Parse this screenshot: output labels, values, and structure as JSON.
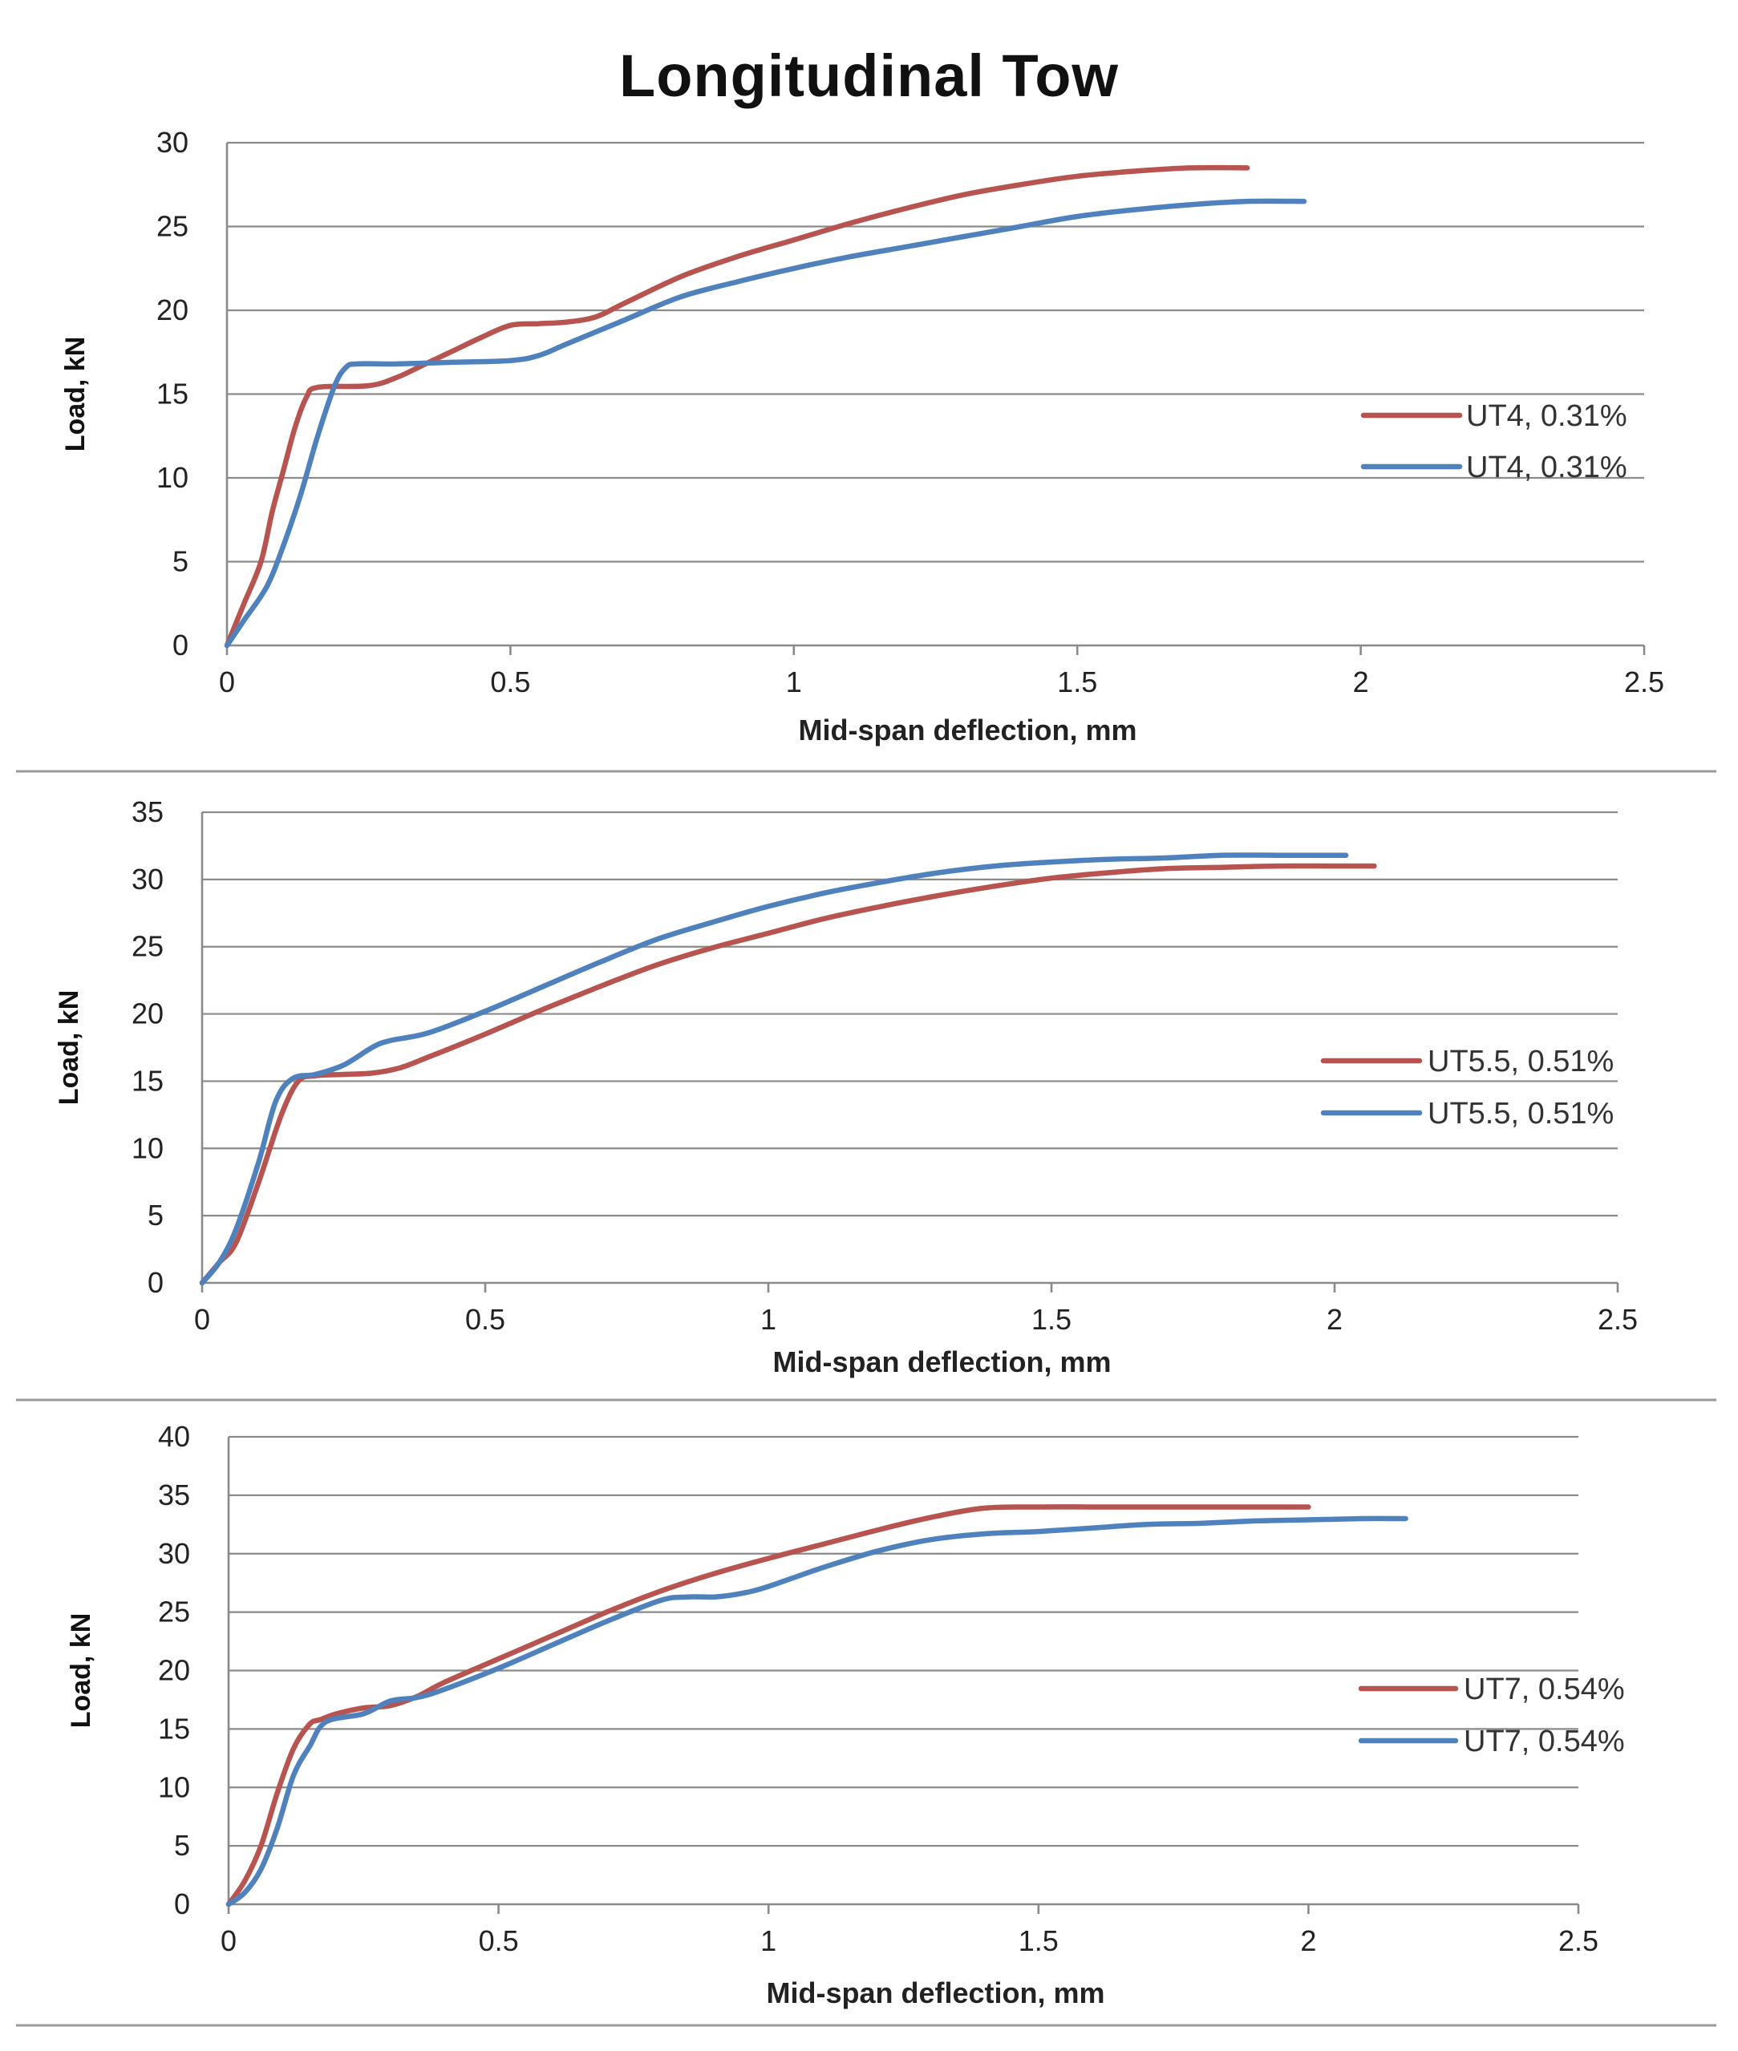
{
  "title": "Longitudinal Tow",
  "colors": {
    "series1": "#b85450",
    "series2": "#4f81bd",
    "grid": "#8a8a8a"
  },
  "chart_data": [
    {
      "type": "line",
      "xlabel": "Mid-span deflection, mm",
      "ylabel": "Load, kN",
      "xlim": [
        0,
        2.5
      ],
      "ylim": [
        0,
        30
      ],
      "xticks": [
        "0",
        "0.5",
        "1",
        "1.5",
        "2",
        "2.5"
      ],
      "yticks": [
        "0",
        "5",
        "10",
        "15",
        "20",
        "25",
        "30"
      ],
      "legend_position": "right",
      "series": [
        {
          "name": "UT4, 0.31%",
          "color": "#b85450",
          "x": [
            0,
            0.03,
            0.06,
            0.08,
            0.1,
            0.12,
            0.14,
            0.16,
            0.25,
            0.3,
            0.35,
            0.4,
            0.45,
            0.5,
            0.55,
            0.6,
            0.65,
            0.7,
            0.8,
            0.9,
            1.0,
            1.1,
            1.2,
            1.3,
            1.4,
            1.5,
            1.6,
            1.7,
            1.8
          ],
          "y": [
            0,
            2.5,
            5,
            8,
            10.5,
            13,
            14.8,
            15.4,
            15.5,
            16.0,
            16.8,
            17.6,
            18.4,
            19.1,
            19.2,
            19.3,
            19.6,
            20.4,
            22.0,
            23.2,
            24.2,
            25.2,
            26.1,
            26.9,
            27.5,
            28.0,
            28.3,
            28.5,
            28.5
          ]
        },
        {
          "name": "UT4, 0.31%",
          "color": "#4f81bd",
          "x": [
            0,
            0.03,
            0.07,
            0.1,
            0.13,
            0.16,
            0.19,
            0.21,
            0.23,
            0.3,
            0.4,
            0.5,
            0.55,
            0.6,
            0.7,
            0.8,
            0.9,
            1.0,
            1.1,
            1.2,
            1.3,
            1.4,
            1.5,
            1.6,
            1.7,
            1.8,
            1.9
          ],
          "y": [
            0,
            1.5,
            3.5,
            6,
            9,
            12.5,
            15.5,
            16.6,
            16.8,
            16.8,
            16.9,
            17.0,
            17.3,
            18.0,
            19.4,
            20.8,
            21.7,
            22.5,
            23.2,
            23.8,
            24.4,
            25.0,
            25.6,
            26.0,
            26.3,
            26.5,
            26.5
          ]
        }
      ]
    },
    {
      "type": "line",
      "xlabel": "Mid-span deflection, mm",
      "ylabel": "Load, kN",
      "xlim": [
        0,
        2.5
      ],
      "ylim": [
        0,
        35
      ],
      "xticks": [
        "0",
        "0.5",
        "1",
        "1.5",
        "2",
        "2.5"
      ],
      "yticks": [
        "0",
        "5",
        "10",
        "15",
        "20",
        "25",
        "30",
        "35"
      ],
      "legend_position": "right",
      "series": [
        {
          "name": "UT5.5, 0.51%",
          "color": "#b85450",
          "x": [
            0,
            0.03,
            0.06,
            0.1,
            0.14,
            0.17,
            0.2,
            0.25,
            0.3,
            0.35,
            0.4,
            0.5,
            0.6,
            0.7,
            0.8,
            0.9,
            1.0,
            1.1,
            1.2,
            1.3,
            1.4,
            1.5,
            1.6,
            1.7,
            1.8,
            1.9,
            2.0,
            2.07
          ],
          "y": [
            0,
            1.5,
            3,
            7.5,
            12.5,
            15.0,
            15.4,
            15.5,
            15.6,
            16.0,
            16.8,
            18.5,
            20.3,
            22.0,
            23.6,
            24.9,
            26.0,
            27.1,
            28.0,
            28.8,
            29.5,
            30.1,
            30.5,
            30.8,
            30.9,
            31.0,
            31.0,
            31.0
          ]
        },
        {
          "name": "UT5.5, 0.51%",
          "color": "#4f81bd",
          "x": [
            0,
            0.03,
            0.06,
            0.1,
            0.13,
            0.16,
            0.2,
            0.25,
            0.3,
            0.33,
            0.4,
            0.5,
            0.6,
            0.7,
            0.8,
            0.9,
            1.0,
            1.1,
            1.2,
            1.3,
            1.4,
            1.5,
            1.6,
            1.7,
            1.8,
            1.9,
            2.02
          ],
          "y": [
            0,
            1.5,
            4,
            9,
            13.5,
            15.2,
            15.5,
            16.2,
            17.5,
            18.0,
            18.6,
            20.2,
            22.0,
            23.8,
            25.5,
            26.8,
            28.0,
            29.0,
            29.8,
            30.5,
            31.0,
            31.3,
            31.5,
            31.6,
            31.8,
            31.8,
            31.8
          ]
        }
      ]
    },
    {
      "type": "line",
      "xlabel": "Mid-span deflection, mm",
      "ylabel": "Load, kN",
      "xlim": [
        0,
        2.5
      ],
      "ylim": [
        0,
        40
      ],
      "xticks": [
        "0",
        "0.5",
        "1",
        "1.5",
        "2",
        "2.5"
      ],
      "yticks": [
        "0",
        "5",
        "10",
        "15",
        "20",
        "25",
        "30",
        "35",
        "40"
      ],
      "legend_position": "right",
      "series": [
        {
          "name": "UT7, 0.54%",
          "color": "#b85450",
          "x": [
            0,
            0.03,
            0.06,
            0.09,
            0.12,
            0.15,
            0.17,
            0.2,
            0.25,
            0.3,
            0.35,
            0.4,
            0.5,
            0.6,
            0.7,
            0.8,
            0.9,
            1.0,
            1.1,
            1.2,
            1.3,
            1.4,
            1.5,
            1.6,
            1.7,
            1.8,
            1.9,
            2.0
          ],
          "y": [
            0,
            2,
            5,
            9.5,
            13.3,
            15.4,
            15.8,
            16.3,
            16.8,
            17.0,
            17.8,
            19.0,
            21.0,
            23.0,
            25.0,
            26.8,
            28.3,
            29.6,
            30.8,
            32.0,
            33.1,
            33.9,
            34.0,
            34.0,
            34.0,
            34.0,
            34.0,
            34.0
          ]
        },
        {
          "name": "UT7, 0.54%",
          "color": "#4f81bd",
          "x": [
            0,
            0.03,
            0.06,
            0.09,
            0.12,
            0.15,
            0.18,
            0.25,
            0.3,
            0.35,
            0.4,
            0.5,
            0.6,
            0.7,
            0.8,
            0.85,
            0.9,
            0.95,
            1.0,
            1.1,
            1.2,
            1.3,
            1.4,
            1.5,
            1.6,
            1.7,
            1.8,
            1.9,
            2.0,
            2.1,
            2.18
          ],
          "y": [
            0,
            1,
            3,
            6.5,
            11,
            13.5,
            15.6,
            16.3,
            17.4,
            17.7,
            18.4,
            20.2,
            22.2,
            24.2,
            26.0,
            26.3,
            26.3,
            26.6,
            27.2,
            28.8,
            30.2,
            31.2,
            31.7,
            31.9,
            32.2,
            32.5,
            32.6,
            32.8,
            32.9,
            33.0,
            33.0
          ]
        }
      ]
    }
  ]
}
